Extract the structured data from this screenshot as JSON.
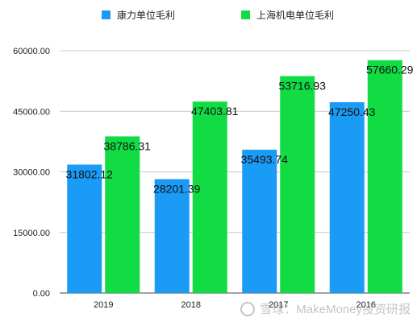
{
  "chart_data": {
    "type": "bar",
    "categories": [
      "2019",
      "2018",
      "2017",
      "2016"
    ],
    "series": [
      {
        "name": "康力单位毛利",
        "color": "#1a9bf5",
        "values": [
          31802.12,
          28201.39,
          35493.74,
          47250.43
        ],
        "labels": [
          "31802.12",
          "28201.39",
          "35493.74",
          "47250.43"
        ]
      },
      {
        "name": "上海机电单位毛利",
        "color": "#11dc44",
        "values": [
          38786.31,
          47403.81,
          53716.93,
          57660.29
        ],
        "labels": [
          "38786.31",
          "47403.81",
          "53716.93",
          "57660.29"
        ]
      }
    ],
    "yticks": [
      "0.00",
      "15000.00",
      "30000.00",
      "45000.00",
      "60000.00"
    ],
    "ylim": [
      0,
      60000
    ],
    "grid": "horizontal",
    "legend_position": "top"
  },
  "watermark": {
    "text": "雪球：MakeMoney投资研报"
  }
}
